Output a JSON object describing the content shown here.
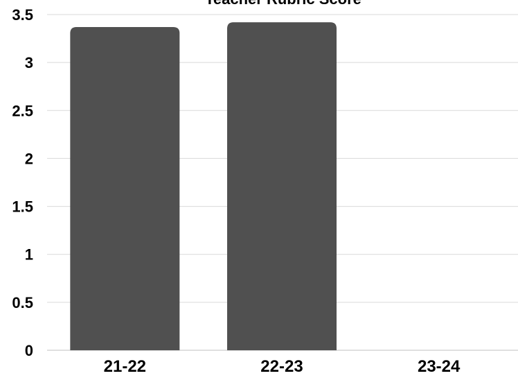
{
  "chart_data": {
    "type": "bar",
    "title": "Teacher Rubric Score",
    "xlabel": "",
    "ylabel": "",
    "categories": [
      "21-22",
      "22-23",
      "23-24"
    ],
    "values": [
      3.37,
      3.42,
      null
    ],
    "ylim": [
      0,
      3.5
    ],
    "yticks": [
      "0",
      "0.5",
      "1",
      "1.5",
      "2",
      "2.5",
      "3",
      "3.5"
    ],
    "grid": true,
    "bar_color": "#505050",
    "grid_color": "#d9d9d9",
    "text_color": "#000000"
  }
}
